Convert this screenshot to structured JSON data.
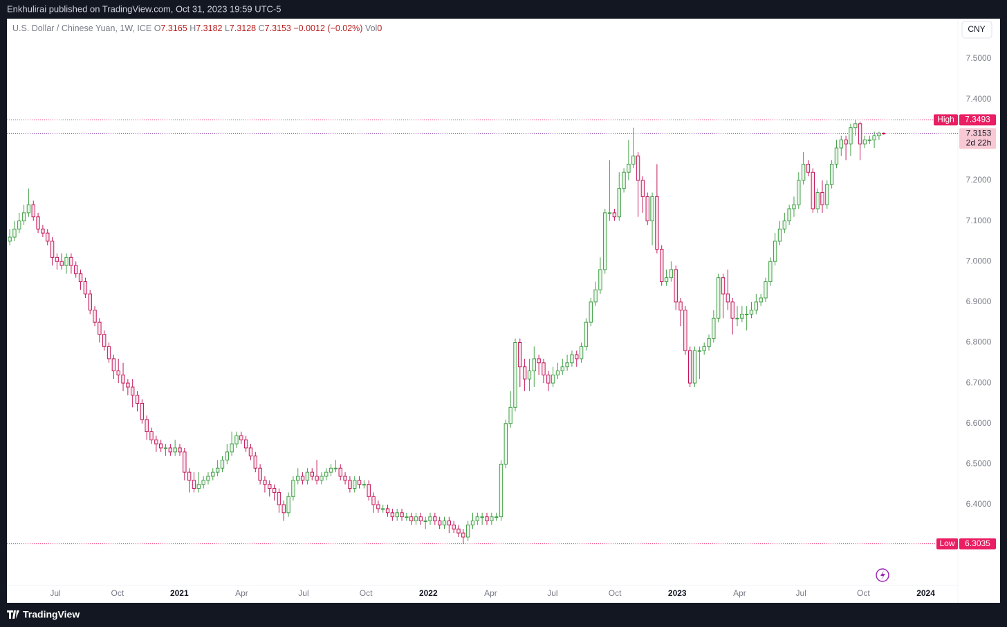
{
  "header": {
    "text": "Enkhulirai published on TradingView.com, Oct 31, 2023 19:59 UTC-5"
  },
  "footer": {
    "brand": "TradingView"
  },
  "chart_data": {
    "type": "candlestick",
    "title": "U.S. Dollar / Chinese Yuan, 1W, ICE",
    "legend": {
      "o": "O",
      "h": "H",
      "l": "L",
      "c": "C",
      "change": "−0.0012 (−0.02%)",
      "volume_label": "Vol",
      "volume": 0
    },
    "currency": "CNY",
    "up_color": "#43a047",
    "down_color": "#c2185b",
    "up_fill": "#e8f5e9",
    "down_fill": "#fce4ec",
    "open": [
      7.05,
      7.06,
      7.08,
      7.1,
      7.12,
      7.14,
      7.11,
      7.08,
      7.07,
      7.05,
      7.01,
      7.0,
      6.99,
      7.01,
      6.99,
      6.97,
      6.95,
      6.92,
      6.88,
      6.85,
      6.82,
      6.79,
      6.76,
      6.73,
      6.72,
      6.7,
      6.69,
      6.67,
      6.65,
      6.61,
      6.58,
      6.56,
      6.55,
      6.54,
      6.54,
      6.53,
      6.54,
      6.53,
      6.48,
      6.46,
      6.44,
      6.45,
      6.46,
      6.47,
      6.48,
      6.49,
      6.51,
      6.53,
      6.55,
      6.57,
      6.56,
      6.54,
      6.52,
      6.49,
      6.46,
      6.45,
      6.44,
      6.43,
      6.4,
      6.38,
      6.42,
      6.46,
      6.47,
      6.46,
      6.48,
      6.47,
      6.46,
      6.47,
      6.48,
      6.49,
      6.49,
      6.47,
      6.46,
      6.44,
      6.46,
      6.45,
      6.45,
      6.42,
      6.4,
      6.39,
      6.39,
      6.38,
      6.37,
      6.38,
      6.37,
      6.37,
      6.36,
      6.37,
      6.36,
      6.36,
      6.37,
      6.36,
      6.35,
      6.36,
      6.35,
      6.34,
      6.33,
      6.32,
      6.35,
      6.36,
      6.37,
      6.37,
      6.36,
      6.37,
      6.37,
      6.5,
      6.6,
      6.64,
      6.8,
      6.74,
      6.71,
      6.73,
      6.76,
      6.75,
      6.72,
      6.7,
      6.72,
      6.73,
      6.74,
      6.75,
      6.77,
      6.76,
      6.79,
      6.85,
      6.9,
      6.93,
      6.98,
      7.12,
      7.12,
      7.11,
      7.18,
      7.22,
      7.24,
      7.26,
      7.2,
      7.16,
      7.1,
      7.16,
      7.03,
      6.95,
      6.96,
      6.98,
      6.9,
      6.88,
      6.78,
      6.7,
      6.78,
      6.78,
      6.79,
      6.81,
      6.86,
      6.96,
      6.92,
      6.9,
      6.86,
      6.86,
      6.87,
      6.87,
      6.88,
      6.9,
      6.91,
      6.95,
      7.0,
      7.05,
      7.08,
      7.1,
      7.13,
      7.14,
      7.2,
      7.24,
      7.22,
      7.13,
      7.17,
      7.14,
      7.19,
      7.24,
      7.28,
      7.3,
      7.29,
      7.33,
      7.34,
      7.29,
      7.3,
      7.3,
      7.31,
      7.3165
    ],
    "high": [
      7.08,
      7.1,
      7.12,
      7.14,
      7.18,
      7.15,
      7.12,
      7.09,
      7.08,
      7.06,
      7.02,
      7.02,
      7.02,
      7.02,
      7.0,
      6.98,
      6.96,
      6.93,
      6.89,
      6.86,
      6.83,
      6.8,
      6.77,
      6.76,
      6.75,
      6.71,
      6.71,
      6.68,
      6.66,
      6.62,
      6.59,
      6.57,
      6.56,
      6.55,
      6.55,
      6.56,
      6.55,
      6.54,
      6.49,
      6.48,
      6.48,
      6.47,
      6.48,
      6.49,
      6.51,
      6.52,
      6.55,
      6.58,
      6.58,
      6.58,
      6.57,
      6.55,
      6.53,
      6.5,
      6.47,
      6.46,
      6.45,
      6.44,
      6.41,
      6.43,
      6.47,
      6.49,
      6.48,
      6.49,
      6.49,
      6.51,
      6.48,
      6.49,
      6.5,
      6.51,
      6.5,
      6.48,
      6.47,
      6.47,
      6.47,
      6.46,
      6.46,
      6.43,
      6.41,
      6.4,
      6.4,
      6.39,
      6.39,
      6.39,
      6.38,
      6.38,
      6.38,
      6.38,
      6.37,
      6.38,
      6.38,
      6.37,
      6.37,
      6.37,
      6.36,
      6.35,
      6.34,
      6.36,
      6.38,
      6.38,
      6.38,
      6.38,
      6.38,
      6.38,
      6.51,
      6.61,
      6.68,
      6.81,
      6.81,
      6.76,
      6.76,
      6.79,
      6.77,
      6.76,
      6.73,
      6.74,
      6.75,
      6.76,
      6.77,
      6.78,
      6.78,
      6.8,
      6.86,
      6.91,
      6.95,
      7.01,
      7.13,
      7.25,
      7.13,
      7.22,
      7.23,
      7.3,
      7.33,
      7.27,
      7.21,
      7.17,
      7.17,
      7.24,
      7.04,
      6.98,
      7.0,
      6.99,
      6.91,
      6.89,
      6.79,
      6.79,
      6.79,
      6.8,
      6.82,
      6.88,
      6.97,
      6.97,
      6.98,
      6.91,
      6.89,
      6.89,
      6.89,
      6.9,
      6.92,
      6.92,
      6.96,
      7.01,
      7.07,
      7.1,
      7.12,
      7.14,
      7.16,
      7.22,
      7.27,
      7.25,
      7.23,
      7.18,
      7.2,
      7.2,
      7.25,
      7.3,
      7.31,
      7.31,
      7.34,
      7.3493,
      7.345,
      7.31,
      7.31,
      7.32,
      7.32,
      7.3182
    ],
    "low": [
      7.04,
      7.05,
      7.07,
      7.09,
      7.11,
      7.1,
      7.07,
      7.06,
      7.04,
      6.99,
      6.98,
      6.98,
      6.97,
      6.97,
      6.96,
      6.93,
      6.91,
      6.87,
      6.84,
      6.8,
      6.78,
      6.75,
      6.71,
      6.7,
      6.68,
      6.67,
      6.64,
      6.63,
      6.6,
      6.56,
      6.55,
      6.53,
      6.53,
      6.52,
      6.52,
      6.52,
      6.52,
      6.46,
      6.43,
      6.43,
      6.43,
      6.44,
      6.45,
      6.46,
      6.47,
      6.48,
      6.5,
      6.52,
      6.54,
      6.55,
      6.53,
      6.51,
      6.48,
      6.45,
      6.43,
      6.42,
      6.41,
      6.38,
      6.36,
      6.37,
      6.41,
      6.45,
      6.45,
      6.45,
      6.46,
      6.45,
      6.45,
      6.46,
      6.47,
      6.48,
      6.46,
      6.45,
      6.43,
      6.43,
      6.44,
      6.44,
      6.41,
      6.38,
      6.38,
      6.38,
      6.37,
      6.36,
      6.36,
      6.36,
      6.36,
      6.35,
      6.35,
      6.35,
      6.34,
      6.35,
      6.35,
      6.34,
      6.34,
      6.33,
      6.33,
      6.32,
      6.3035,
      6.31,
      6.34,
      6.35,
      6.35,
      6.35,
      6.35,
      6.36,
      6.36,
      6.49,
      6.59,
      6.63,
      6.69,
      6.68,
      6.68,
      6.69,
      6.72,
      6.7,
      6.68,
      6.69,
      6.71,
      6.72,
      6.73,
      6.74,
      6.74,
      6.75,
      6.78,
      6.84,
      6.89,
      6.92,
      6.97,
      7.1,
      7.1,
      7.1,
      7.17,
      7.2,
      7.23,
      7.11,
      7.12,
      7.09,
      7.04,
      7.02,
      6.94,
      6.94,
      6.95,
      6.88,
      6.84,
      6.77,
      6.69,
      6.69,
      6.71,
      6.77,
      6.78,
      6.8,
      6.85,
      6.86,
      6.88,
      6.82,
      6.84,
      6.85,
      6.83,
      6.86,
      6.87,
      6.89,
      6.9,
      6.94,
      6.99,
      7.04,
      7.07,
      7.09,
      7.11,
      7.13,
      7.19,
      7.21,
      7.12,
      7.12,
      7.12,
      7.13,
      7.18,
      7.23,
      7.26,
      7.25,
      7.26,
      7.31,
      7.25,
      7.28,
      7.29,
      7.28,
      7.3,
      7.3128
    ],
    "close": [
      7.06,
      7.08,
      7.1,
      7.12,
      7.14,
      7.11,
      7.08,
      7.07,
      7.05,
      7.01,
      7.0,
      6.99,
      7.01,
      6.99,
      6.97,
      6.95,
      6.92,
      6.88,
      6.85,
      6.82,
      6.79,
      6.76,
      6.73,
      6.72,
      6.7,
      6.69,
      6.67,
      6.65,
      6.61,
      6.58,
      6.56,
      6.55,
      6.54,
      6.54,
      6.53,
      6.54,
      6.53,
      6.48,
      6.46,
      6.44,
      6.45,
      6.46,
      6.47,
      6.48,
      6.49,
      6.51,
      6.53,
      6.55,
      6.57,
      6.56,
      6.54,
      6.52,
      6.49,
      6.46,
      6.45,
      6.44,
      6.43,
      6.4,
      6.38,
      6.42,
      6.46,
      6.47,
      6.46,
      6.48,
      6.47,
      6.46,
      6.47,
      6.48,
      6.49,
      6.49,
      6.47,
      6.46,
      6.44,
      6.46,
      6.45,
      6.45,
      6.42,
      6.4,
      6.39,
      6.39,
      6.38,
      6.37,
      6.38,
      6.37,
      6.37,
      6.36,
      6.37,
      6.36,
      6.36,
      6.37,
      6.36,
      6.35,
      6.36,
      6.35,
      6.34,
      6.33,
      6.32,
      6.35,
      6.36,
      6.37,
      6.37,
      6.36,
      6.37,
      6.37,
      6.5,
      6.6,
      6.64,
      6.8,
      6.74,
      6.71,
      6.73,
      6.76,
      6.75,
      6.72,
      6.7,
      6.72,
      6.73,
      6.74,
      6.75,
      6.77,
      6.76,
      6.79,
      6.85,
      6.9,
      6.93,
      6.98,
      7.12,
      7.12,
      7.11,
      7.18,
      7.22,
      7.24,
      7.26,
      7.2,
      7.16,
      7.1,
      7.16,
      7.03,
      6.95,
      6.96,
      6.98,
      6.9,
      6.88,
      6.78,
      6.7,
      6.78,
      6.78,
      6.79,
      6.81,
      6.86,
      6.96,
      6.92,
      6.9,
      6.86,
      6.86,
      6.87,
      6.87,
      6.88,
      6.9,
      6.91,
      6.95,
      7.0,
      7.05,
      7.08,
      7.1,
      7.13,
      7.14,
      7.2,
      7.24,
      7.22,
      7.13,
      7.17,
      7.14,
      7.19,
      7.24,
      7.28,
      7.3,
      7.29,
      7.33,
      7.34,
      7.29,
      7.3,
      7.3,
      7.31,
      7.3165,
      7.3153
    ],
    "ylim": [
      6.2,
      7.6
    ],
    "yticks": [
      {
        "value": 6.4,
        "label": "6.4000"
      },
      {
        "value": 6.5,
        "label": "6.5000"
      },
      {
        "value": 6.6,
        "label": "6.6000"
      },
      {
        "value": 6.7,
        "label": "6.7000"
      },
      {
        "value": 6.8,
        "label": "6.8000"
      },
      {
        "value": 6.9,
        "label": "6.9000"
      },
      {
        "value": 7.0,
        "label": "7.0000"
      },
      {
        "value": 7.1,
        "label": "7.1000"
      },
      {
        "value": 7.2,
        "label": "7.2000"
      },
      {
        "value": 7.4,
        "label": "7.4000"
      },
      {
        "value": 7.5,
        "label": "7.5000"
      }
    ],
    "xlim": [
      -0.6,
      200.7
    ],
    "xticks": [
      {
        "value": 9.66,
        "label": "Jul"
      },
      {
        "value": 22.8,
        "label": "Oct"
      },
      {
        "value": 35.9,
        "label": "2021"
      },
      {
        "value": 49.1,
        "label": "Apr"
      },
      {
        "value": 62.2,
        "label": "Jul"
      },
      {
        "value": 75.4,
        "label": "Oct"
      },
      {
        "value": 88.6,
        "label": "2022"
      },
      {
        "value": 101.8,
        "label": "Apr"
      },
      {
        "value": 114.9,
        "label": "Jul"
      },
      {
        "value": 128.1,
        "label": "Oct"
      },
      {
        "value": 141.3,
        "label": "2023"
      },
      {
        "value": 154.5,
        "label": "Apr"
      },
      {
        "value": 167.5,
        "label": "Jul"
      },
      {
        "value": 180.7,
        "label": "Oct"
      },
      {
        "value": 193.9,
        "label": "2024"
      }
    ],
    "high_marker": {
      "label": "High",
      "value": 7.3493
    },
    "low_marker": {
      "label": "Low",
      "value": 6.3035
    },
    "countdown": "2d 22h"
  }
}
